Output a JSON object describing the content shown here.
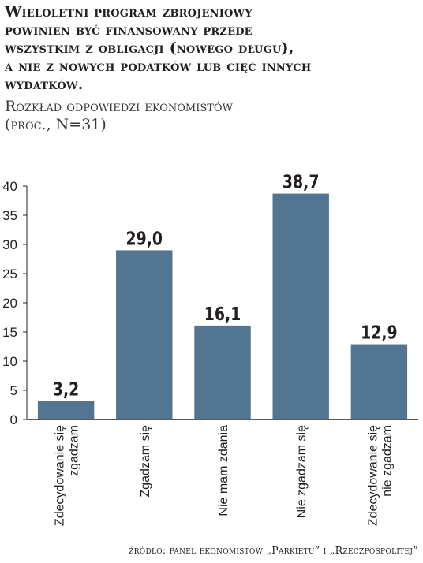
{
  "header": {
    "title": "Wieloletni program zbrojeniowy\npowinien być finansowany przede\nwszystkim z obligacji (nowego długu),\na nie z nowych podatków lub cięć innych\nwydatków.",
    "subtitle": "Rozkład odpowiedzi ekonomistów\n(proc., N=31)"
  },
  "chart_data": {
    "type": "bar",
    "categories": [
      "Zdecydowanie się zgadzam",
      "Zgadzam się",
      "Nie mam zdania",
      "Nie zgadzam się",
      "Zdecydowanie się nie zgadzam"
    ],
    "category_lines": [
      [
        "Zdecydowanie się",
        "zgadzam"
      ],
      [
        "Zgadzam się"
      ],
      [
        "Nie mam zdania"
      ],
      [
        "Nie zgadzam się"
      ],
      [
        "Zdecydowanie się",
        "nie zgadzam"
      ]
    ],
    "values": [
      3.2,
      29.0,
      16.1,
      38.7,
      12.9
    ],
    "value_labels": [
      "3,2",
      "29,0",
      "16,1",
      "38,7",
      "12,9"
    ],
    "ylim": [
      0,
      40
    ],
    "yticks": [
      "0",
      "5",
      "10",
      "15",
      "20",
      "25",
      "30",
      "35",
      "40"
    ],
    "grid": false,
    "bar_color": "#527591",
    "axis_color": "#231f20"
  },
  "footer": {
    "source": "źródło: panel ekonomistów „Parkietu” i „Rzeczpospolitej”"
  }
}
